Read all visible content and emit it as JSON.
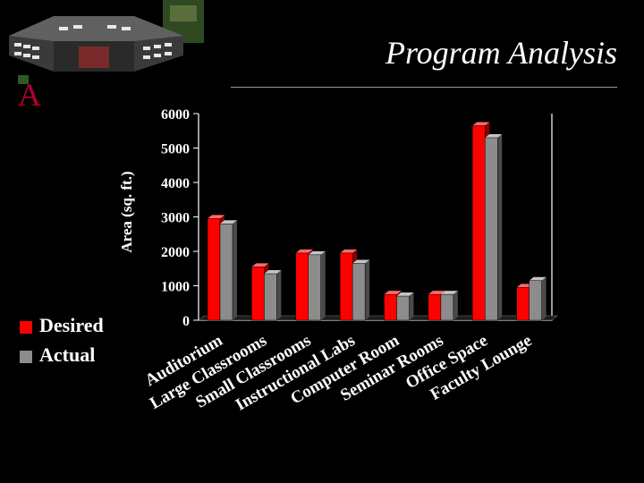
{
  "slide": {
    "title": "Program Analysis",
    "logo_letter": "A",
    "logo_icon": "building-icon"
  },
  "colors": {
    "desired": "#ff0000",
    "actual": "#8c8c8c",
    "background": "#000000",
    "text": "#ffffff"
  },
  "chart_data": {
    "type": "bar",
    "categories": [
      "Auditorium",
      "Large Classrooms",
      "Small Classrooms",
      "Instructional Labs",
      "Computer Room",
      "Seminar Rooms",
      "Office Space",
      "Faculty Lounge"
    ],
    "series": [
      {
        "name": "Desired",
        "values": [
          2950,
          1550,
          1950,
          1950,
          750,
          750,
          5650,
          950
        ]
      },
      {
        "name": "Actual",
        "values": [
          2800,
          1350,
          1900,
          1650,
          700,
          750,
          5300,
          1150
        ]
      }
    ],
    "ylabel": "Area (sq. ft.)",
    "xlabel": "",
    "ylim": [
      0,
      6000
    ],
    "yticks": [
      "0",
      "1000",
      "2000",
      "3000",
      "4000",
      "5000",
      "6000"
    ],
    "legend_position": "left",
    "grid": false
  }
}
